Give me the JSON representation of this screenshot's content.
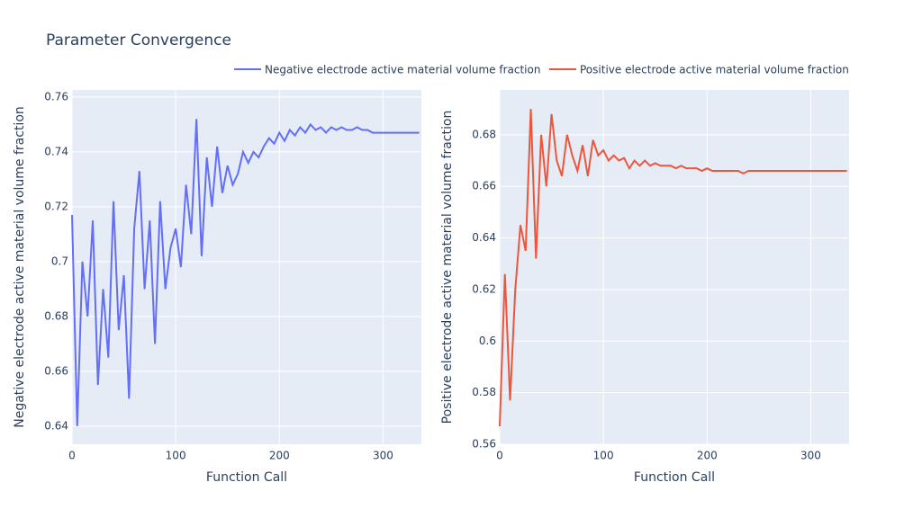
{
  "title": "Parameter Convergence",
  "chart_data": [
    {
      "type": "line",
      "xlabel": "Function Call",
      "ylabel": "Negative electrode active material volume fraction",
      "x": [
        0,
        5,
        10,
        15,
        20,
        25,
        30,
        35,
        40,
        45,
        50,
        55,
        60,
        65,
        70,
        75,
        80,
        85,
        90,
        95,
        100,
        105,
        110,
        115,
        120,
        125,
        130,
        135,
        140,
        145,
        150,
        155,
        160,
        165,
        170,
        175,
        180,
        185,
        190,
        195,
        200,
        205,
        210,
        215,
        220,
        225,
        230,
        235,
        240,
        245,
        250,
        255,
        260,
        265,
        270,
        275,
        280,
        285,
        290,
        295,
        300,
        305,
        310,
        315,
        320,
        325,
        330,
        335
      ],
      "series": [
        {
          "name": "Negative electrode active material volume fraction",
          "color": "#636efa",
          "values": [
            0.717,
            0.64,
            0.7,
            0.68,
            0.715,
            0.655,
            0.69,
            0.665,
            0.722,
            0.675,
            0.695,
            0.65,
            0.712,
            0.733,
            0.69,
            0.715,
            0.67,
            0.722,
            0.69,
            0.705,
            0.712,
            0.698,
            0.728,
            0.71,
            0.752,
            0.702,
            0.738,
            0.72,
            0.742,
            0.725,
            0.735,
            0.728,
            0.732,
            0.74,
            0.736,
            0.74,
            0.738,
            0.742,
            0.745,
            0.743,
            0.747,
            0.744,
            0.748,
            0.746,
            0.749,
            0.747,
            0.75,
            0.748,
            0.749,
            0.747,
            0.749,
            0.748,
            0.749,
            0.748,
            0.748,
            0.749,
            0.748,
            0.748,
            0.747,
            0.747,
            0.747,
            0.747,
            0.747,
            0.747,
            0.747,
            0.747,
            0.747,
            0.747
          ]
        }
      ],
      "xlim": [
        0,
        337
      ],
      "xticks": [
        0,
        100,
        200,
        300
      ],
      "ylim": [
        0.6334,
        0.7626
      ],
      "yticks": [
        0.64,
        0.66,
        0.68,
        0.7,
        0.72,
        0.74,
        0.76
      ],
      "grid": true
    },
    {
      "type": "line",
      "xlabel": "Function Call",
      "ylabel": "Positive electrode active material volume fraction",
      "x": [
        0,
        5,
        10,
        15,
        20,
        25,
        30,
        35,
        40,
        45,
        50,
        55,
        60,
        65,
        70,
        75,
        80,
        85,
        90,
        95,
        100,
        105,
        110,
        115,
        120,
        125,
        130,
        135,
        140,
        145,
        150,
        155,
        160,
        165,
        170,
        175,
        180,
        185,
        190,
        195,
        200,
        205,
        210,
        215,
        220,
        225,
        230,
        235,
        240,
        245,
        250,
        255,
        260,
        265,
        270,
        275,
        280,
        285,
        290,
        295,
        300,
        305,
        310,
        315,
        320,
        325,
        330,
        335
      ],
      "series": [
        {
          "name": "Positive electrode active material volume fraction",
          "color": "#EF553B",
          "values": [
            0.567,
            0.626,
            0.577,
            0.62,
            0.645,
            0.635,
            0.69,
            0.632,
            0.68,
            0.66,
            0.688,
            0.67,
            0.664,
            0.68,
            0.672,
            0.666,
            0.676,
            0.664,
            0.678,
            0.672,
            0.674,
            0.67,
            0.672,
            0.67,
            0.671,
            0.667,
            0.67,
            0.668,
            0.67,
            0.668,
            0.669,
            0.668,
            0.668,
            0.668,
            0.667,
            0.668,
            0.667,
            0.667,
            0.667,
            0.666,
            0.667,
            0.666,
            0.666,
            0.666,
            0.666,
            0.666,
            0.666,
            0.665,
            0.666,
            0.666,
            0.666,
            0.666,
            0.666,
            0.666,
            0.666,
            0.666,
            0.666,
            0.666,
            0.666,
            0.666,
            0.666,
            0.666,
            0.666,
            0.666,
            0.666,
            0.666,
            0.666,
            0.666
          ]
        }
      ],
      "xlim": [
        0,
        337
      ],
      "xticks": [
        0,
        100,
        200,
        300
      ],
      "ylim": [
        0.56,
        0.6974
      ],
      "yticks": [
        0.56,
        0.58,
        0.6,
        0.62,
        0.64,
        0.66,
        0.68
      ],
      "grid": true
    }
  ]
}
